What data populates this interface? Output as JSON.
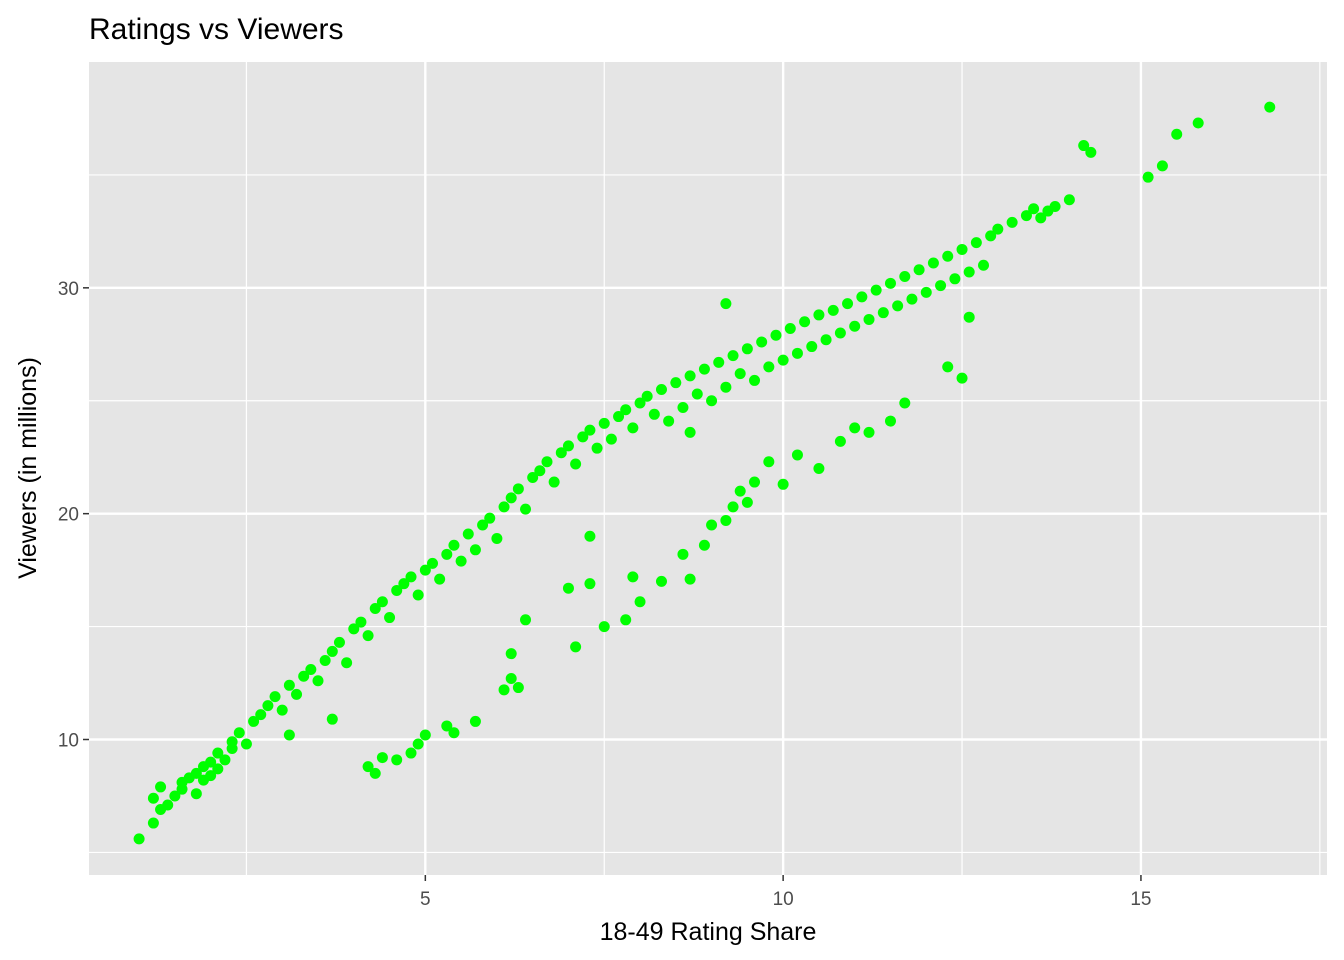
{
  "chart_data": {
    "type": "scatter",
    "title": "Ratings vs Viewers",
    "xlabel": "18-49 Rating Share",
    "ylabel": "Viewers (in millions)",
    "xlim": [
      0.3,
      17.6
    ],
    "ylim": [
      4.0,
      40.0
    ],
    "x_ticks": [
      5,
      10,
      15
    ],
    "y_ticks": [
      10,
      20,
      30
    ],
    "x_minor": [
      2.5,
      7.5,
      12.5,
      17.5
    ],
    "y_minor": [
      5,
      15,
      25,
      35
    ],
    "grid": true,
    "point_color": "#00FF00",
    "panel_color": "#E5E5E5",
    "x": [
      1.0,
      1.2,
      1.3,
      1.2,
      1.4,
      1.3,
      1.5,
      1.6,
      1.6,
      1.7,
      1.8,
      1.8,
      1.9,
      1.9,
      2.0,
      2.0,
      2.1,
      2.1,
      2.2,
      2.3,
      2.3,
      2.4,
      2.5,
      2.6,
      2.7,
      2.8,
      2.9,
      3.0,
      3.1,
      3.2,
      3.3,
      3.4,
      3.5,
      3.6,
      3.7,
      3.8,
      3.9,
      4.0,
      4.1,
      4.2,
      4.3,
      4.4,
      4.5,
      4.6,
      4.7,
      4.8,
      4.9,
      5.0,
      5.1,
      5.2,
      5.3,
      5.4,
      5.5,
      5.6,
      5.7,
      5.8,
      5.9,
      6.0,
      6.1,
      6.2,
      6.3,
      6.4,
      6.5,
      6.6,
      6.7,
      6.8,
      6.9,
      7.0,
      7.1,
      7.2,
      7.3,
      7.4,
      7.5,
      7.6,
      7.7,
      7.8,
      7.9,
      8.0,
      8.1,
      8.2,
      8.3,
      8.4,
      8.5,
      8.6,
      8.7,
      8.8,
      8.9,
      9.0,
      9.1,
      9.2,
      9.3,
      9.4,
      9.5,
      9.6,
      9.7,
      9.8,
      9.9,
      10.0,
      10.1,
      10.2,
      10.3,
      10.4,
      10.5,
      10.6,
      10.7,
      10.8,
      10.9,
      11.0,
      11.1,
      11.2,
      11.3,
      11.4,
      11.5,
      11.6,
      11.7,
      11.8,
      11.9,
      12.0,
      12.1,
      12.2,
      12.3,
      12.4,
      12.5,
      12.6,
      12.7,
      12.8,
      12.9,
      13.0,
      13.2,
      13.4,
      13.5,
      13.6,
      13.7,
      13.8,
      14.0,
      14.2,
      14.3,
      15.1,
      15.3,
      15.5,
      15.8,
      16.8,
      4.2,
      4.3,
      4.6,
      4.8,
      4.9,
      5.0,
      5.3,
      5.4,
      5.7,
      6.1,
      6.2,
      6.3,
      7.1,
      7.3,
      7.5,
      7.8,
      7.9,
      8.0,
      8.3,
      8.6,
      8.7,
      8.9,
      9.0,
      9.2,
      9.3,
      9.4,
      9.5,
      9.6,
      9.8,
      10.0,
      10.2,
      10.5,
      10.8,
      11.0,
      11.2,
      11.5,
      11.7,
      12.3,
      12.5,
      12.6,
      9.2,
      6.2,
      6.4,
      7.0,
      7.3,
      8.7,
      3.7,
      3.1,
      4.4
    ],
    "y": [
      5.6,
      6.3,
      6.9,
      7.4,
      7.1,
      7.9,
      7.5,
      8.1,
      7.8,
      8.3,
      7.6,
      8.5,
      8.2,
      8.8,
      8.4,
      9.0,
      8.7,
      9.4,
      9.1,
      9.6,
      9.9,
      10.3,
      9.8,
      10.8,
      11.1,
      11.5,
      11.9,
      11.3,
      12.4,
      12.0,
      12.8,
      13.1,
      12.6,
      13.5,
      13.9,
      14.3,
      13.4,
      14.9,
      15.2,
      14.6,
      15.8,
      16.1,
      15.4,
      16.6,
      16.9,
      17.2,
      16.4,
      17.5,
      17.8,
      17.1,
      18.2,
      18.6,
      17.9,
      19.1,
      18.4,
      19.5,
      19.8,
      18.9,
      20.3,
      20.7,
      21.1,
      20.2,
      21.6,
      21.9,
      22.3,
      21.4,
      22.7,
      23.0,
      22.2,
      23.4,
      23.7,
      22.9,
      24.0,
      23.3,
      24.3,
      24.6,
      23.8,
      24.9,
      25.2,
      24.4,
      25.5,
      24.1,
      25.8,
      24.7,
      26.1,
      25.3,
      26.4,
      25.0,
      26.7,
      25.6,
      27.0,
      26.2,
      27.3,
      25.9,
      27.6,
      26.5,
      27.9,
      26.8,
      28.2,
      27.1,
      28.5,
      27.4,
      28.8,
      27.7,
      29.0,
      28.0,
      29.3,
      28.3,
      29.6,
      28.6,
      29.9,
      28.9,
      30.2,
      29.2,
      30.5,
      29.5,
      30.8,
      29.8,
      31.1,
      30.1,
      31.4,
      30.4,
      31.7,
      30.7,
      32.0,
      31.0,
      32.3,
      32.6,
      32.9,
      33.2,
      33.5,
      33.1,
      33.4,
      33.6,
      33.9,
      36.3,
      36.0,
      34.9,
      35.4,
      36.8,
      37.3,
      38.0,
      8.8,
      8.5,
      9.1,
      9.4,
      9.8,
      10.2,
      10.6,
      10.3,
      10.8,
      12.2,
      12.7,
      12.3,
      14.1,
      16.9,
      15.0,
      15.3,
      17.2,
      16.1,
      17.0,
      18.2,
      17.1,
      18.6,
      19.5,
      19.7,
      20.3,
      21.0,
      20.5,
      21.4,
      22.3,
      21.3,
      22.6,
      22.0,
      23.2,
      23.8,
      23.6,
      24.1,
      24.9,
      26.5,
      26.0,
      28.7,
      29.3,
      13.8,
      15.3,
      16.7,
      19.0,
      23.6,
      10.9,
      10.2,
      9.2
    ]
  }
}
